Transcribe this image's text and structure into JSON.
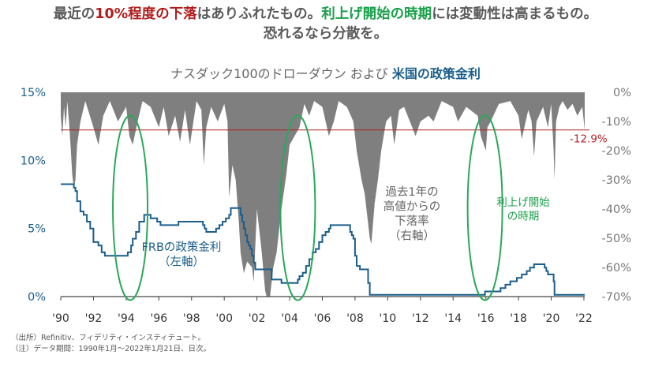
{
  "headline": {
    "l1_a": "最近の",
    "l1_b": "10%程度の下落",
    "l1_c": "はありふれたもの。",
    "l1_d": "利上げ開始の時期",
    "l1_e": "には変動性は高まるもの。",
    "l2": "恐れるなら分散を。"
  },
  "chart_title": {
    "part1": "ナスダック100のドローダウン および ",
    "part2": "米国の政策金利"
  },
  "notes": {
    "source": "（出所）Refinitiv、フィデリティ・インスティテュート。",
    "note": "（注）データ期間：1990年1月〜2022年1月21日、日次。"
  },
  "colors": {
    "drawdown": "#7f7f7f",
    "rate": "#1b5e8c",
    "highlight": "#2aa85a",
    "current_line": "#b22222"
  },
  "chart_data": {
    "type": "area",
    "title": "ナスダック100のドローダウン および 米国の政策金利",
    "x_ticks": [
      "'90",
      "'92",
      "'94",
      "'96",
      "'98",
      "'00",
      "'02",
      "'04",
      "'06",
      "'08",
      "'10",
      "'12",
      "'14",
      "'16",
      "'18",
      "'20",
      "'22"
    ],
    "x_range": [
      1990,
      2022.05
    ],
    "left_axis": {
      "range": [
        0,
        15
      ],
      "ticks": [
        "0%",
        "5%",
        "10%",
        "15%"
      ]
    },
    "right_axis": {
      "range": [
        -70,
        0
      ],
      "ticks": [
        "0%",
        "-10%",
        "-20%",
        "-30%",
        "-40%",
        "-50%",
        "-60%",
        "-70%"
      ]
    },
    "series": [
      {
        "name": "FRBの政策金利（左軸）",
        "axis": "left",
        "style": "step",
        "x": [
          1990.0,
          1990.8,
          1990.9,
          1991.0,
          1991.2,
          1991.4,
          1991.6,
          1991.8,
          1992.0,
          1992.3,
          1992.5,
          1992.7,
          1994.1,
          1994.3,
          1994.4,
          1994.6,
          1994.8,
          1995.1,
          1995.5,
          1995.9,
          1996.1,
          1997.2,
          1998.7,
          1998.8,
          1998.9,
          1999.5,
          1999.7,
          1999.9,
          2000.1,
          2000.3,
          2000.4,
          2001.0,
          2001.1,
          2001.2,
          2001.3,
          2001.4,
          2001.5,
          2001.6,
          2001.7,
          2001.8,
          2001.9,
          2002.9,
          2003.5,
          2004.5,
          2004.6,
          2004.8,
          2005.0,
          2005.2,
          2005.4,
          2005.6,
          2005.8,
          2006.0,
          2006.2,
          2006.4,
          2006.5,
          2007.7,
          2007.8,
          2007.9,
          2008.0,
          2008.1,
          2008.3,
          2008.8,
          2008.9,
          2015.95,
          2016.9,
          2017.2,
          2017.5,
          2017.9,
          2018.2,
          2018.5,
          2018.7,
          2018.95,
          2019.6,
          2019.7,
          2019.8,
          2020.15,
          2020.2,
          2022.05
        ],
        "y": [
          8.25,
          8.0,
          7.75,
          7.0,
          6.25,
          6.0,
          5.5,
          5.0,
          4.0,
          3.75,
          3.25,
          3.0,
          3.25,
          3.75,
          4.25,
          4.75,
          5.5,
          6.0,
          5.75,
          5.5,
          5.25,
          5.5,
          5.25,
          5.0,
          4.75,
          5.0,
          5.25,
          5.5,
          5.75,
          6.0,
          6.5,
          6.0,
          5.5,
          5.0,
          4.5,
          4.0,
          3.75,
          3.5,
          3.0,
          2.5,
          2.0,
          1.25,
          1.0,
          1.25,
          1.5,
          1.75,
          2.25,
          2.75,
          3.25,
          3.5,
          4.0,
          4.5,
          4.75,
          5.0,
          5.25,
          4.75,
          4.5,
          4.25,
          3.0,
          2.25,
          2.0,
          1.0,
          0.125,
          0.375,
          0.625,
          0.875,
          1.125,
          1.375,
          1.625,
          1.875,
          2.125,
          2.375,
          2.125,
          1.875,
          1.625,
          1.125,
          0.125,
          0.125
        ]
      },
      {
        "name": "過去1年の高値からの下落率（右軸）",
        "axis": "right",
        "style": "area",
        "x": [
          1990.0,
          1990.1,
          1990.2,
          1990.3,
          1990.4,
          1990.5,
          1990.6,
          1990.7,
          1990.8,
          1990.9,
          1991.0,
          1991.2,
          1991.5,
          1992.0,
          1992.3,
          1992.6,
          1993.0,
          1993.5,
          1994.0,
          1994.2,
          1994.4,
          1994.7,
          1995.0,
          1995.5,
          1996.0,
          1996.3,
          1996.6,
          1997.0,
          1997.3,
          1997.6,
          1997.9,
          1998.3,
          1998.6,
          1998.75,
          1998.9,
          1999.2,
          1999.6,
          2000.0,
          2000.2,
          2000.3,
          2000.5,
          2000.7,
          2000.9,
          2001.0,
          2001.2,
          2001.4,
          2001.7,
          2001.8,
          2002.0,
          2002.3,
          2002.5,
          2002.6,
          2002.8,
          2003.0,
          2003.2,
          2003.5,
          2003.8,
          2004.0,
          2004.3,
          2004.6,
          2004.9,
          2005.2,
          2005.5,
          2006.0,
          2006.4,
          2006.7,
          2007.0,
          2007.5,
          2007.9,
          2008.1,
          2008.4,
          2008.6,
          2008.8,
          2008.9,
          2009.0,
          2009.2,
          2009.4,
          2009.6,
          2009.9,
          2010.2,
          2010.4,
          2010.7,
          2011.0,
          2011.5,
          2011.7,
          2012.0,
          2012.5,
          2012.8,
          2013.3,
          2014.0,
          2014.3,
          2014.8,
          2015.5,
          2015.7,
          2016.0,
          2016.1,
          2016.3,
          2016.8,
          2017.5,
          2018.0,
          2018.2,
          2018.6,
          2018.8,
          2018.95,
          2019.1,
          2019.5,
          2019.8,
          2020.0,
          2020.15,
          2020.2,
          2020.3,
          2020.5,
          2020.7,
          2021.0,
          2021.3,
          2021.6,
          2021.9,
          2022.05
        ],
        "y": [
          -8,
          -15,
          -5,
          -12,
          -3,
          -10,
          -18,
          -28,
          -33,
          -30,
          -18,
          -10,
          -3,
          -12,
          -18,
          -8,
          -3,
          -10,
          -5,
          -15,
          -18,
          -10,
          -3,
          -5,
          -12,
          -5,
          -15,
          -8,
          -17,
          -6,
          -18,
          -3,
          -6,
          -25,
          -12,
          -5,
          -10,
          -4,
          -10,
          -36,
          -25,
          -30,
          -45,
          -55,
          -62,
          -58,
          -60,
          -65,
          -40,
          -55,
          -68,
          -70,
          -72,
          -60,
          -55,
          -40,
          -28,
          -18,
          -15,
          -12,
          -4,
          -8,
          -3,
          -5,
          -15,
          -10,
          -3,
          -5,
          -10,
          -20,
          -30,
          -35,
          -45,
          -50,
          -52,
          -38,
          -30,
          -20,
          -10,
          -8,
          -18,
          -6,
          -5,
          -12,
          -15,
          -10,
          -8,
          -10,
          -3,
          -5,
          -10,
          -5,
          -8,
          -15,
          -20,
          -12,
          -10,
          -4,
          -3,
          -8,
          -16,
          -6,
          -10,
          -22,
          -10,
          -5,
          -12,
          -4,
          -20,
          -30,
          -10,
          -5,
          -3,
          -6,
          -4,
          -8,
          -5,
          -12.9
        ]
      }
    ],
    "reference_line": {
      "label": "-12.9%",
      "value": -12.9,
      "axis": "right"
    },
    "annotations": [
      {
        "text_lines": [
          "FRBの政策金利",
          "（左軸）"
        ],
        "color": "#1b5e8c"
      },
      {
        "text_lines": [
          "過去1年の",
          "高値からの",
          "下落率",
          "（右軸）"
        ],
        "color": "#666666"
      },
      {
        "text_lines": [
          "利上げ開始",
          "の時期"
        ],
        "color": "#19a04a"
      }
    ],
    "highlight_periods": [
      1994.25,
      2004.5,
      2015.95
    ]
  }
}
